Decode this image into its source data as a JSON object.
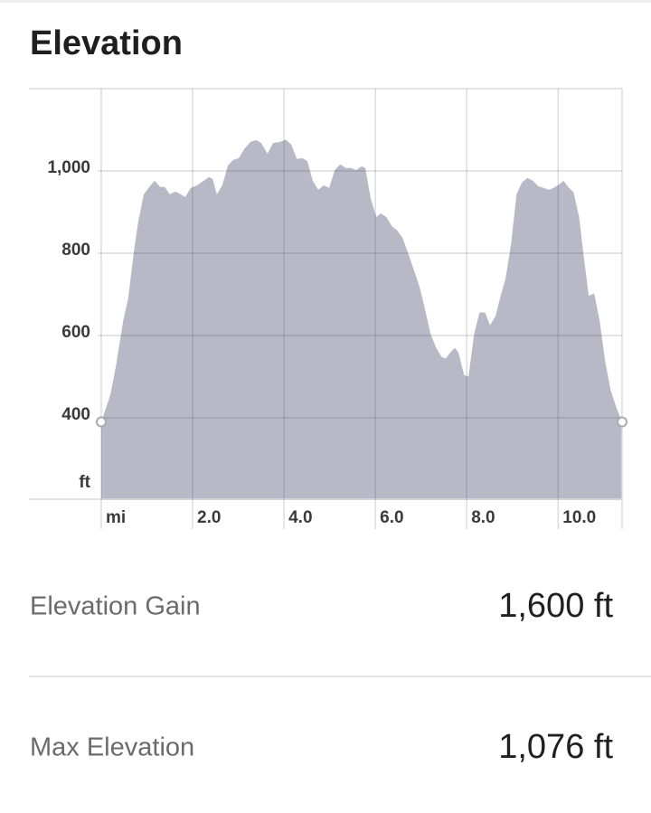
{
  "title": "Elevation",
  "chart_data": {
    "type": "area",
    "color": "#b9b8c7",
    "grid": true,
    "y_label": "ft",
    "x": [
      0,
      0.2,
      0.32,
      0.48,
      0.59,
      0.71,
      0.81,
      0.93,
      1.05,
      1.17,
      1.29,
      1.39,
      1.5,
      1.62,
      1.74,
      1.84,
      1.96,
      2.1,
      2.24,
      2.36,
      2.44,
      2.53,
      2.65,
      2.77,
      2.89,
      3.01,
      3.13,
      3.27,
      3.39,
      3.5,
      3.64,
      3.76,
      3.92,
      4.04,
      4.16,
      4.28,
      4.4,
      4.51,
      4.63,
      4.75,
      4.87,
      4.99,
      5.11,
      5.23,
      5.35,
      5.47,
      5.58,
      5.7,
      5.78,
      5.9,
      6.02,
      6.12,
      6.24,
      6.36,
      6.48,
      6.59,
      6.73,
      6.85,
      6.97,
      7.09,
      7.21,
      7.33,
      7.45,
      7.54,
      7.64,
      7.74,
      7.82,
      7.94,
      8.04,
      8.16,
      8.28,
      8.4,
      8.51,
      8.63,
      8.73,
      8.85,
      8.97,
      9.09,
      9.21,
      9.33,
      9.45,
      9.56,
      9.68,
      9.8,
      9.9,
      10.02,
      10.12,
      10.22,
      10.34,
      10.46,
      10.55,
      10.67,
      10.79,
      10.91,
      11.03,
      11.15,
      11.27,
      11.4
    ],
    "values": [
      390,
      456,
      526,
      636,
      691,
      801,
      877,
      943,
      961,
      976,
      961,
      961,
      943,
      950,
      943,
      937,
      959,
      965,
      976,
      985,
      980,
      943,
      965,
      1013,
      1027,
      1031,
      1053,
      1071,
      1075,
      1068,
      1042,
      1068,
      1071,
      1076,
      1064,
      1029,
      1031,
      1024,
      976,
      954,
      965,
      959,
      1002,
      1016,
      1007,
      1007,
      1002,
      1011,
      1007,
      932,
      888,
      897,
      888,
      866,
      855,
      838,
      796,
      757,
      717,
      662,
      603,
      570,
      548,
      544,
      559,
      570,
      559,
      504,
      500,
      603,
      656,
      656,
      625,
      647,
      691,
      739,
      822,
      943,
      972,
      983,
      976,
      963,
      959,
      954,
      959,
      967,
      976,
      961,
      948,
      888,
      801,
      697,
      702,
      636,
      537,
      467,
      427,
      390
    ],
    "xlim": [
      0,
      11.4
    ],
    "ylim": [
      200,
      1200
    ],
    "xticks": [
      {
        "value": 0,
        "label": "mi"
      },
      {
        "value": 2,
        "label": "2.0"
      },
      {
        "value": 4,
        "label": "4.0"
      },
      {
        "value": 6,
        "label": "6.0"
      },
      {
        "value": 8,
        "label": "8.0"
      },
      {
        "value": 10,
        "label": "10.0"
      }
    ],
    "yticks": [
      400,
      600,
      800,
      {
        "value": 1000,
        "label": "1,000"
      }
    ]
  },
  "stats": [
    {
      "label": "Elevation Gain",
      "value": "1,600 ft"
    },
    {
      "label": "Max Elevation",
      "value": "1,076 ft"
    }
  ]
}
